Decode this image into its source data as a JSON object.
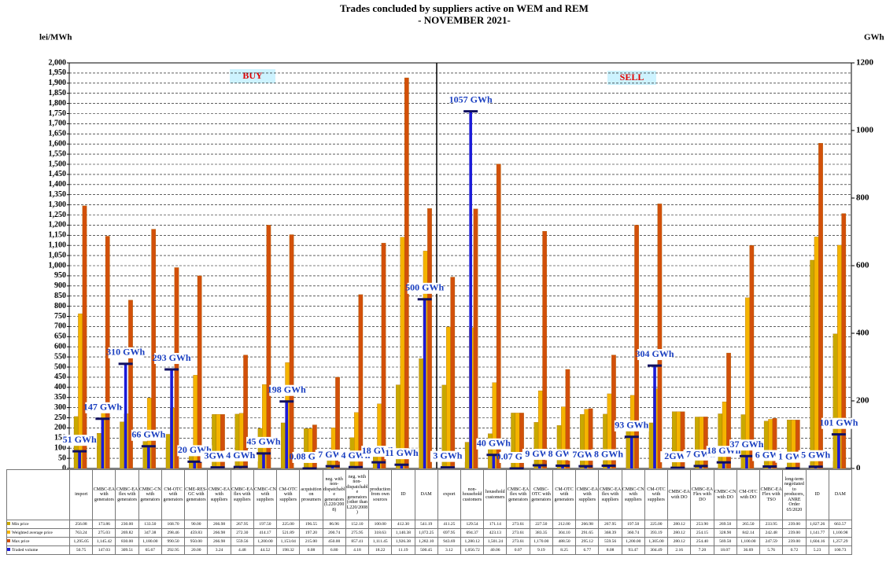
{
  "chart_data": {
    "type": "bar",
    "title": "Trades concluded by suppliers active on WEM and REM",
    "subtitle": "- NOVEMBER 2021-",
    "y_label": "lei/MWh",
    "y2_label": "GWh",
    "annotations": [
      "BUY",
      "SELL"
    ],
    "grid": true,
    "categories": [
      "import",
      "CMBC-EA with generators",
      "CMBC-EA flex with generators",
      "CMBC-CN with generators",
      "CM-OTC with generators",
      "CME-RES-GC with generators",
      "CMBC-EA with suppliers",
      "CMBC-EA flex with suppliers",
      "CMBC-CN with suppliers",
      "CM-OTC with suppliers",
      "acquisition on prosumers",
      "neg. with non-dispatchable generators (L220/2008)",
      "neg. with non-dispatchable generators (other than L220/2008)",
      "production from own sources",
      "ID",
      "DAM",
      "export",
      "non-household customers",
      "household customers",
      "CMBC-EA flex with generators",
      "CMBC-OTC with generators",
      "CM-OTC with generators",
      "CMBC-EA with suppliers",
      "CMBC-EA flex with suppliers",
      "CMBC-CN with suppliers",
      "CM-OTC with suppliers",
      "CMBC-EA with DO",
      "CMBC-EA Flex with DO",
      "CMBC-CN with DO",
      "CM-OTC with DO",
      "CMBC-EA Flex with TSO",
      "long-term negotiated to producers, ANRE Order 65/2020",
      "ID",
      "DAM"
    ],
    "series": [
      {
        "name": "Min price",
        "color": "#c9a800",
        "values": [
          256.08,
          173.86,
          230,
          133.5,
          168.7,
          90,
          266.98,
          267.95,
          197.5,
          225,
          196.55,
          86.96,
          152.1,
          100,
          412.3,
          541.19,
          411.25,
          129.54,
          171.14,
          273.61,
          227.5,
          212,
          266.98,
          267.95,
          197.5,
          225,
          280.12,
          253.9,
          269.5,
          265.5,
          233.95,
          239,
          1027.26,
          663.57
        ],
        "value_labels": [
          "256.08",
          "173.86",
          "230.00",
          "133.50",
          "168.70",
          "90.00",
          "266.98",
          "267.95",
          "197.50",
          "225.00",
          "196.55",
          "86.96",
          "152.10",
          "100.00",
          "412.30",
          "541.19",
          "411.25",
          "129.54",
          "171.14",
          "273.61",
          "227.50",
          "212.00",
          "266.98",
          "267.95",
          "197.50",
          "225.00",
          "280.12",
          "253.90",
          "269.50",
          "265.50",
          "233.95",
          "239.00",
          "1,027.26",
          "663.57"
        ]
      },
      {
        "name": "Weighted average price",
        "color": "#f5b400",
        "values": [
          763.24,
          275.03,
          269.82,
          347.38,
          298.46,
          459.83,
          266.98,
          272.3,
          414.17,
          521.89,
          197.2,
          200.74,
          275.95,
          318.63,
          1140.38,
          1072.25,
          697.95,
          694.37,
          423.13,
          273.61,
          383.35,
          304.1,
          291.65,
          368.39,
          360.74,
          393.19,
          280.12,
          254.15,
          328.9,
          842.14,
          242.48,
          239,
          1141.77,
          1100.98
        ],
        "value_labels": [
          "763.24",
          "275.03",
          "269.82",
          "347.38",
          "298.46",
          "459.83",
          "266.98",
          "272.30",
          "414.17",
          "521.89",
          "197.20",
          "200.74",
          "275.95",
          "318.63",
          "1,140.38",
          "1,072.25",
          "697.95",
          "694.37",
          "423.13",
          "273.61",
          "383.35",
          "304.10",
          "291.65",
          "368.39",
          "360.74",
          "393.19",
          "280.12",
          "254.15",
          "328.90",
          "842.14",
          "242.48",
          "239.00",
          "1,141.77",
          "1,100.98"
        ]
      },
      {
        "name": "Max price",
        "color": "#d2500a",
        "values": [
          1295.05,
          1145.42,
          830,
          1180,
          990.5,
          950,
          266.98,
          559.56,
          1200,
          1153.04,
          215,
          450,
          857.41,
          1111.45,
          1926.38,
          1282.1,
          943.69,
          1280.12,
          1501.24,
          273.61,
          1170,
          488.5,
          295.12,
          559.56,
          1200,
          1305,
          280.12,
          254.4,
          569.5,
          1100,
          247.59,
          239,
          1604.16,
          1257.29
        ],
        "value_labels": [
          "1,295.05",
          "1,145.42",
          "830.00",
          "1,180.00",
          "990.50",
          "950.00",
          "266.98",
          "559.56",
          "1,200.00",
          "1,153.04",
          "215.00",
          "450.00",
          "857.41",
          "1,111.45",
          "1,926.38",
          "1,282.10",
          "943.69",
          "1,280.12",
          "1,501.24",
          "273.61",
          "1,170.00",
          "488.50",
          "295.12",
          "559.56",
          "1,200.00",
          "1,305.00",
          "280.12",
          "254.40",
          "569.50",
          "1,100.00",
          "247.59",
          "239.00",
          "1,604.16",
          "1,257.29"
        ]
      },
      {
        "name": "Traded volume",
        "color": "#1a1ad8",
        "axis": "y2",
        "values": [
          50.75,
          147.03,
          309.51,
          65.67,
          292.95,
          20,
          3.24,
          4.48,
          44.52,
          198.32,
          0.08,
          6.8,
          4.18,
          18.22,
          11.19,
          500.45,
          3.12,
          1056.72,
          40.06,
          0.07,
          9.19,
          8.25,
          6.77,
          8.08,
          93.47,
          304.49,
          2.16,
          7.2,
          18.07,
          36.69,
          5.76,
          0.72,
          5.23,
          100.73
        ],
        "value_labels": [
          "50.75",
          "147.03",
          "309.51",
          "65.67",
          "292.95",
          "20.00",
          "3.24",
          "4.48",
          "44.52",
          "198.32",
          "0.08",
          "6.80",
          "4.18",
          "18.22",
          "11.19",
          "500.45",
          "3.12",
          "1,056.72",
          "40.06",
          "0.07",
          "9.19",
          "8.25",
          "6.77",
          "8.08",
          "93.47",
          "304.49",
          "2.16",
          "7.20",
          "18.07",
          "36.69",
          "5.76",
          "0.72",
          "5.23",
          "100.73"
        ],
        "callouts": [
          "51 GWh",
          "147 GWh",
          "310 GWh",
          "66 GWh",
          "293 GWh",
          "20 GWh",
          "3GWh",
          "4 GWh",
          "45 GWh",
          "198 GWh",
          "0.08 GWh",
          "7 GWh",
          "4 GWh",
          "18 GWh",
          "11 GWh",
          "500 GWh",
          "3 GWh",
          "1057 GWh",
          "40 GWh",
          "0.07 GWh",
          "9 GWh",
          "8 GWh",
          "7GWh",
          "8 GWh",
          "93 GWh",
          "304 GWh",
          "2GWh",
          "7 GWh",
          "18 GWh",
          "37 GWh",
          "6 GWh",
          "1 GWh",
          "5 GWh",
          "101 GWh"
        ]
      }
    ],
    "ylim": [
      0,
      2000
    ],
    "yticks": [
      0,
      50,
      100,
      150,
      200,
      250,
      300,
      350,
      400,
      450,
      500,
      550,
      600,
      650,
      700,
      750,
      800,
      850,
      900,
      950,
      {
        "value": 1000,
        "label": "1,000"
      },
      {
        "value": 1050,
        "label": "1,050"
      },
      {
        "value": 1100,
        "label": "1,100"
      },
      {
        "value": 1150,
        "label": "1,150"
      },
      {
        "value": 1200,
        "label": "1,200"
      },
      {
        "value": 1250,
        "label": "1,250"
      },
      {
        "value": 1300,
        "label": "1,300"
      },
      {
        "value": 1350,
        "label": "1,350"
      },
      {
        "value": 1400,
        "label": "1,400"
      },
      {
        "value": 1450,
        "label": "1,450"
      },
      {
        "value": 1500,
        "label": "1,500"
      },
      {
        "value": 1550,
        "label": "1,550"
      },
      {
        "value": 1600,
        "label": "1,600"
      },
      {
        "value": 1650,
        "label": "1,650"
      },
      {
        "value": 1700,
        "label": "1,700"
      },
      {
        "value": 1750,
        "label": "1,750"
      },
      {
        "value": 1800,
        "label": "1,800"
      },
      {
        "value": 1850,
        "label": "1,850"
      },
      {
        "value": 1900,
        "label": "1,900"
      },
      {
        "value": 1950,
        "label": "1,950"
      },
      {
        "value": 2000,
        "label": "2,000"
      }
    ],
    "y2lim": [
      0,
      1200
    ],
    "y2ticks": [
      0,
      200,
      400,
      600,
      800,
      1000,
      1200
    ]
  }
}
